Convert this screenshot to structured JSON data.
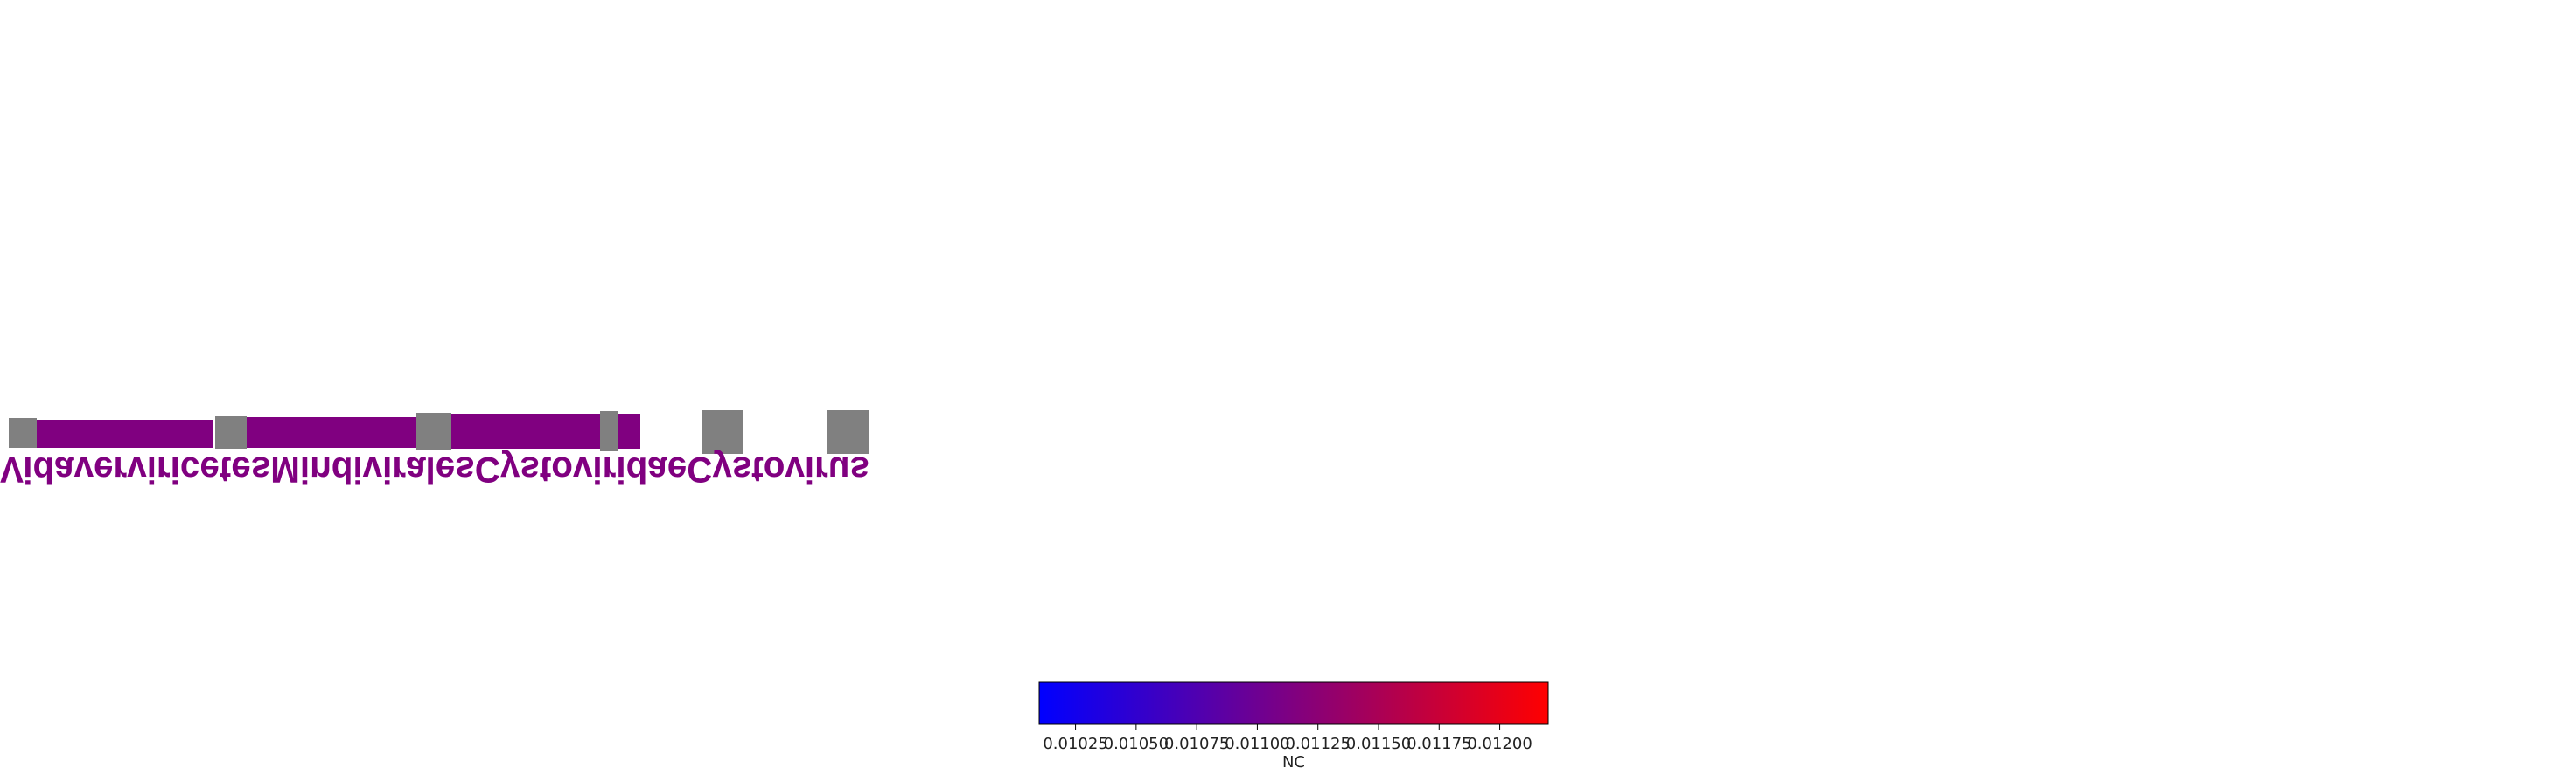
{
  "chart_data": {
    "type": "heatmap",
    "title": "",
    "label_color": "#800080",
    "empty_color": "#808080",
    "rank_labels": [
      "Cystovirus",
      "Cystoviridae",
      "Mindivirales",
      "Vidaverviricetes"
    ],
    "rank_cells": [
      {
        "taxon": "Cystovirus",
        "value": 0.0111
      },
      {
        "taxon": "Cystoviridae",
        "value": 0.0111
      },
      {
        "taxon": "Mindivirales",
        "value": 0.0111
      },
      {
        "taxon": "Vidaverviricetes",
        "value": null
      },
      {
        "taxon": "",
        "value": null
      },
      {
        "taxon": "",
        "value": null
      }
    ],
    "colorbar": {
      "label": "NC",
      "min": 0.0101,
      "max": 0.0122,
      "ticks": [
        0.01025,
        0.0105,
        0.01075,
        0.011,
        0.01125,
        0.0115,
        0.01175,
        0.012
      ],
      "tick_labels": [
        "0.01025",
        "0.01050",
        "0.01075",
        "0.01100",
        "0.01125",
        "0.01150",
        "0.01175",
        "0.01200"
      ],
      "color_low": "#0000ff",
      "color_mid": "#800080",
      "color_high": "#ff0000"
    }
  }
}
